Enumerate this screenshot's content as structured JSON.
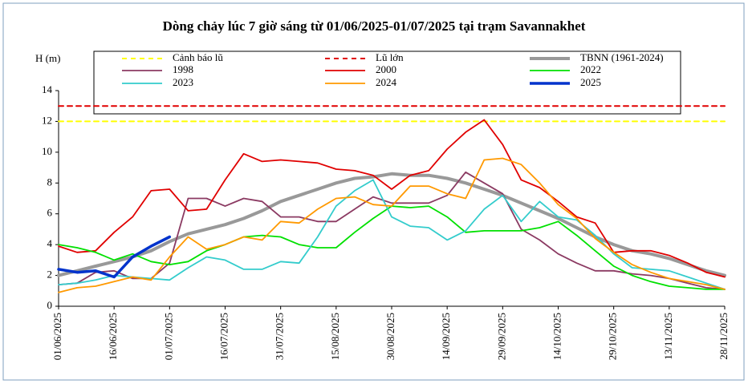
{
  "chart_data": {
    "type": "line",
    "title": "Dòng chảy lúc 7 giờ sáng từ 01/06/2025-01/07/2025 tại trạm Savannakhet",
    "y_label": "H (m)",
    "x": [
      "01/06/2025",
      "06/06/2025",
      "11/06/2025",
      "16/06/2025",
      "21/06/2025",
      "26/06/2025",
      "01/07/2025",
      "06/07/2025",
      "11/07/2025",
      "16/07/2025",
      "21/07/2025",
      "26/07/2025",
      "31/07/2025",
      "05/08/2025",
      "10/08/2025",
      "15/08/2025",
      "20/08/2025",
      "25/08/2025",
      "30/08/2025",
      "04/09/2025",
      "09/09/2025",
      "14/09/2025",
      "19/09/2025",
      "24/09/2025",
      "29/09/2025",
      "04/10/2025",
      "09/10/2025",
      "14/10/2025",
      "19/10/2025",
      "24/10/2025",
      "29/10/2025",
      "03/11/2025",
      "08/11/2025",
      "13/11/2025",
      "18/11/2025",
      "23/11/2025",
      "28/11/2025"
    ],
    "xlim": [
      "01/06/2025",
      "28/11/2025"
    ],
    "xticks": [
      "01/06/2025",
      "16/06/2025",
      "01/07/2025",
      "16/07/2025",
      "31/07/2025",
      "15/08/2025",
      "30/08/2025",
      "14/09/2025",
      "29/09/2025",
      "14/10/2025",
      "29/10/2025",
      "13/11/2025",
      "28/11/2025"
    ],
    "ylim": [
      0,
      14
    ],
    "yticks": [
      0,
      2,
      4,
      6,
      8,
      10,
      12,
      14
    ],
    "grid": false,
    "series": [
      {
        "name": "Cảnh báo lũ",
        "color": "#ffff00",
        "dash": "6 5",
        "width": 2,
        "values": [
          12,
          12,
          12,
          12,
          12,
          12,
          12,
          12,
          12,
          12,
          12,
          12,
          12,
          12,
          12,
          12,
          12,
          12,
          12,
          12,
          12,
          12,
          12,
          12,
          12,
          12,
          12,
          12,
          12,
          12,
          12,
          12,
          12,
          12,
          12,
          12,
          12
        ]
      },
      {
        "name": "Lũ lớn",
        "color": "#e00000",
        "dash": "6 5",
        "width": 2,
        "values": [
          13,
          13,
          13,
          13,
          13,
          13,
          13,
          13,
          13,
          13,
          13,
          13,
          13,
          13,
          13,
          13,
          13,
          13,
          13,
          13,
          13,
          13,
          13,
          13,
          13,
          13,
          13,
          13,
          13,
          13,
          13,
          13,
          13,
          13,
          13,
          13,
          13
        ]
      },
      {
        "name": "TBNN (1961-2024)",
        "color": "#999999",
        "width": 4,
        "values": [
          2.0,
          2.3,
          2.6,
          2.9,
          3.2,
          3.6,
          4.2,
          4.7,
          5.0,
          5.3,
          5.7,
          6.2,
          6.8,
          7.2,
          7.6,
          8.0,
          8.3,
          8.4,
          8.6,
          8.5,
          8.5,
          8.3,
          8.0,
          7.6,
          7.2,
          6.7,
          6.2,
          5.7,
          5.1,
          4.5,
          4.0,
          3.6,
          3.4,
          3.1,
          2.7,
          2.3,
          2.0
        ]
      },
      {
        "name": "1998",
        "color": "#8b3a62",
        "width": 1.8,
        "values": [
          1.4,
          1.5,
          2.2,
          2.3,
          1.8,
          1.8,
          2.8,
          7.0,
          7.0,
          6.5,
          7.0,
          6.8,
          5.8,
          5.8,
          5.5,
          5.5,
          6.3,
          7.1,
          6.7,
          6.7,
          6.7,
          7.2,
          8.7,
          8.0,
          7.3,
          5.0,
          4.3,
          3.4,
          2.8,
          2.3,
          2.3,
          2.1,
          2.0,
          1.8,
          1.5,
          1.2,
          1.1
        ]
      },
      {
        "name": "2000",
        "color": "#e00000",
        "width": 1.8,
        "values": [
          3.9,
          3.5,
          3.6,
          4.8,
          5.8,
          7.5,
          7.6,
          6.2,
          6.3,
          8.2,
          9.9,
          9.4,
          9.5,
          9.4,
          9.3,
          8.9,
          8.8,
          8.5,
          7.6,
          8.5,
          8.8,
          10.2,
          11.3,
          12.1,
          10.5,
          8.2,
          7.7,
          6.8,
          5.8,
          5.4,
          3.5,
          3.6,
          3.6,
          3.3,
          2.8,
          2.2,
          1.9
        ]
      },
      {
        "name": "2022",
        "color": "#00e000",
        "width": 1.8,
        "values": [
          4.0,
          3.8,
          3.5,
          3.0,
          3.4,
          2.9,
          2.7,
          2.9,
          3.6,
          4.0,
          4.5,
          4.6,
          4.5,
          4.0,
          3.8,
          3.8,
          4.8,
          5.7,
          6.5,
          6.4,
          6.5,
          5.8,
          4.8,
          4.9,
          4.9,
          4.9,
          5.1,
          5.5,
          4.6,
          3.6,
          2.6,
          2.0,
          1.6,
          1.3,
          1.2,
          1.1,
          1.1
        ]
      },
      {
        "name": "2023",
        "color": "#33cccc",
        "width": 1.8,
        "values": [
          1.4,
          1.5,
          1.7,
          2.0,
          1.9,
          1.8,
          1.7,
          2.5,
          3.2,
          3.0,
          2.4,
          2.4,
          2.9,
          2.8,
          4.5,
          6.5,
          7.5,
          8.2,
          5.8,
          5.2,
          5.1,
          4.3,
          4.9,
          6.3,
          7.2,
          5.5,
          6.8,
          5.8,
          5.6,
          4.6,
          3.4,
          2.5,
          2.4,
          2.3,
          1.9,
          1.5,
          1.1
        ]
      },
      {
        "name": "2024",
        "color": "#ff9900",
        "width": 1.8,
        "values": [
          0.9,
          1.2,
          1.3,
          1.6,
          1.9,
          1.7,
          3.2,
          4.5,
          3.7,
          4.0,
          4.5,
          4.3,
          5.5,
          5.4,
          6.3,
          7.0,
          7.1,
          6.6,
          6.5,
          7.8,
          7.8,
          7.3,
          7.0,
          9.5,
          9.6,
          9.2,
          8.0,
          6.6,
          5.7,
          4.4,
          3.5,
          2.7,
          2.2,
          1.8,
          1.6,
          1.4,
          1.1
        ]
      },
      {
        "name": "2025",
        "color": "#0033cc",
        "width": 3.5,
        "values": [
          2.4,
          2.2,
          2.3,
          1.9,
          3.2,
          3.9,
          4.5,
          null,
          null,
          null,
          null,
          null,
          null,
          null,
          null,
          null,
          null,
          null,
          null,
          null,
          null,
          null,
          null,
          null,
          null,
          null,
          null,
          null,
          null,
          null,
          null,
          null,
          null,
          null,
          null,
          null,
          null
        ]
      }
    ]
  }
}
